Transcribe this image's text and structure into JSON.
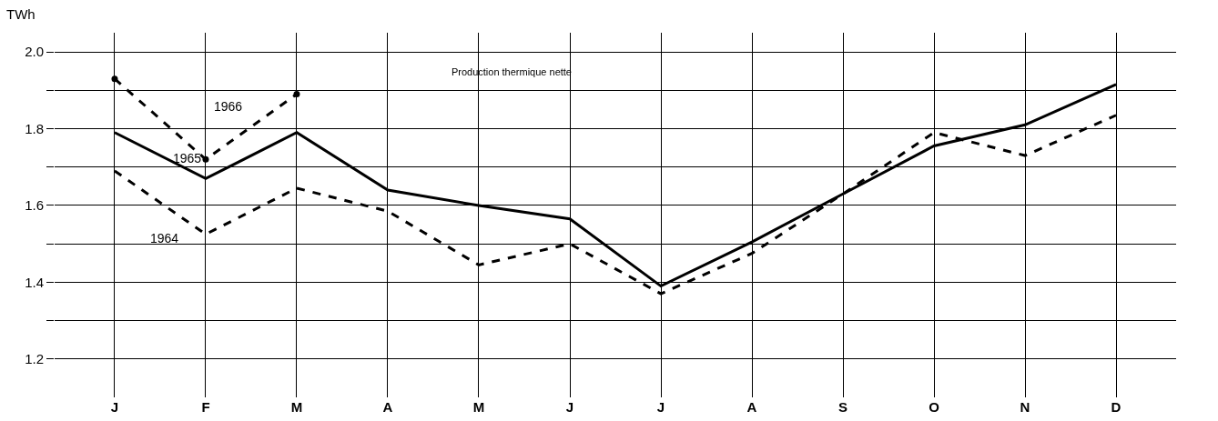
{
  "chart_data": {
    "type": "line",
    "title": "Production thermique nette",
    "ylabel": "TWh",
    "categories": [
      "J",
      "F",
      "M",
      "A",
      "M",
      "J",
      "J",
      "A",
      "S",
      "O",
      "N",
      "D"
    ],
    "series": [
      {
        "name": "1964",
        "color": "#000000",
        "line_style": "dashed",
        "values": [
          1.69,
          1.525,
          1.645,
          1.585,
          1.445,
          1.5,
          1.37,
          1.475,
          1.63,
          1.79,
          1.73,
          1.835
        ]
      },
      {
        "name": "1965",
        "color": "#000000",
        "line_style": "solid",
        "values": [
          1.79,
          1.67,
          1.79,
          1.64,
          1.6,
          1.565,
          1.39,
          1.505,
          1.63,
          1.755,
          1.81,
          1.915
        ]
      },
      {
        "name": "1966",
        "color": "#000000",
        "line_style": "dashed",
        "marker": "circle",
        "values": [
          1.93,
          1.72,
          1.89,
          null,
          null,
          null,
          null,
          null,
          null,
          null,
          null,
          null
        ]
      }
    ],
    "ylim": [
      1.1,
      2.05
    ],
    "yticks": [
      {
        "value": 1.2,
        "label": "1.2"
      },
      {
        "value": 1.3,
        "label": null
      },
      {
        "value": 1.4,
        "label": "1.4"
      },
      {
        "value": 1.5,
        "label": null
      },
      {
        "value": 1.6,
        "label": "1.6"
      },
      {
        "value": 1.7,
        "label": null
      },
      {
        "value": 1.8,
        "label": "1.8"
      },
      {
        "value": 1.9,
        "label": null
      },
      {
        "value": 2.0,
        "label": "2.0"
      }
    ],
    "grid": true,
    "legend": false
  }
}
